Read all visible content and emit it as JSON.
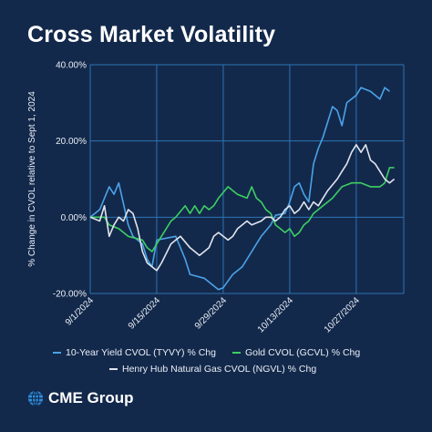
{
  "colors": {
    "background": "#13294b",
    "grid": "#2d73b5",
    "series": [
      "#4aa3e8",
      "#3dcf63",
      "#dfe5ee"
    ]
  },
  "chart_data": {
    "type": "line",
    "title": "Cross Market Volatility",
    "ylabel": "% Change in CVOL relative to Sept 1, 2024",
    "xlabel": "",
    "x_range": [
      "2024-09-01",
      "2024-11-06"
    ],
    "ylim": [
      -20,
      40
    ],
    "yticks": [
      {
        "value": 40,
        "label": "40.00%"
      },
      {
        "value": 20,
        "label": "20.00%"
      },
      {
        "value": 0,
        "label": "0.00%"
      },
      {
        "value": -20,
        "label": "-20.00%"
      }
    ],
    "xticks": [
      {
        "date": "2024-09-01",
        "label": "9/1/2024"
      },
      {
        "date": "2024-09-15",
        "label": "9/15/2024"
      },
      {
        "date": "2024-09-29",
        "label": "9/29/2024"
      },
      {
        "date": "2024-10-13",
        "label": "10/13/2024"
      },
      {
        "date": "2024-10-27",
        "label": "10/27/2024"
      }
    ],
    "grid": true,
    "legend_position": "bottom",
    "series": [
      {
        "name": "10-Year Yield CVOL (TYVY) % Chg",
        "points": [
          [
            "2024-09-01",
            0
          ],
          [
            "2024-09-03",
            2
          ],
          [
            "2024-09-05",
            8
          ],
          [
            "2024-09-06",
            6
          ],
          [
            "2024-09-07",
            9
          ],
          [
            "2024-09-09",
            -2
          ],
          [
            "2024-09-10",
            -5
          ],
          [
            "2024-09-12",
            -7
          ],
          [
            "2024-09-13",
            -11
          ],
          [
            "2024-09-14",
            -13
          ],
          [
            "2024-09-15",
            -6
          ],
          [
            "2024-09-19",
            -5
          ],
          [
            "2024-09-20",
            -8
          ],
          [
            "2024-09-21",
            -11
          ],
          [
            "2024-09-22",
            -15
          ],
          [
            "2024-09-25",
            -16
          ],
          [
            "2024-09-27",
            -18
          ],
          [
            "2024-09-28",
            -19
          ],
          [
            "2024-09-29",
            -18.5
          ],
          [
            "2024-10-01",
            -15
          ],
          [
            "2024-10-03",
            -13
          ],
          [
            "2024-10-05",
            -9
          ],
          [
            "2024-10-06",
            -7
          ],
          [
            "2024-10-07",
            -5
          ],
          [
            "2024-10-09",
            -2
          ],
          [
            "2024-10-10",
            0.5
          ],
          [
            "2024-10-12",
            1
          ],
          [
            "2024-10-13",
            4
          ],
          [
            "2024-10-14",
            8
          ],
          [
            "2024-10-15",
            9
          ],
          [
            "2024-10-16",
            6
          ],
          [
            "2024-10-17",
            4
          ],
          [
            "2024-10-18",
            14
          ],
          [
            "2024-10-19",
            18
          ],
          [
            "2024-10-20",
            21
          ],
          [
            "2024-10-21",
            25
          ],
          [
            "2024-10-22",
            29
          ],
          [
            "2024-10-23",
            28
          ],
          [
            "2024-10-24",
            24
          ],
          [
            "2024-10-25",
            30
          ],
          [
            "2024-10-27",
            32
          ],
          [
            "2024-10-28",
            34
          ],
          [
            "2024-10-30",
            33
          ],
          [
            "2024-10-31",
            32
          ],
          [
            "2024-11-01",
            31
          ],
          [
            "2024-11-02",
            34
          ],
          [
            "2024-11-03",
            33
          ]
        ]
      },
      {
        "name": "Gold CVOL (GCVL) % Chg",
        "points": [
          [
            "2024-09-01",
            0
          ],
          [
            "2024-09-04",
            0
          ],
          [
            "2024-09-05",
            -2
          ],
          [
            "2024-09-07",
            -3
          ],
          [
            "2024-09-09",
            -5
          ],
          [
            "2024-09-12",
            -6
          ],
          [
            "2024-09-13",
            -8
          ],
          [
            "2024-09-14",
            -9
          ],
          [
            "2024-09-15",
            -7
          ],
          [
            "2024-09-17",
            -3
          ],
          [
            "2024-09-18",
            -1
          ],
          [
            "2024-09-19",
            0
          ],
          [
            "2024-09-21",
            3
          ],
          [
            "2024-09-22",
            1
          ],
          [
            "2024-09-23",
            3
          ],
          [
            "2024-09-24",
            1
          ],
          [
            "2024-09-25",
            3
          ],
          [
            "2024-09-26",
            2
          ],
          [
            "2024-09-27",
            3
          ],
          [
            "2024-09-28",
            5
          ],
          [
            "2024-09-30",
            8
          ],
          [
            "2024-10-01",
            7
          ],
          [
            "2024-10-02",
            6
          ],
          [
            "2024-10-04",
            5
          ],
          [
            "2024-10-05",
            8
          ],
          [
            "2024-10-06",
            5
          ],
          [
            "2024-10-07",
            4
          ],
          [
            "2024-10-08",
            2
          ],
          [
            "2024-10-09",
            1
          ],
          [
            "2024-10-10",
            -2
          ],
          [
            "2024-10-11",
            -3
          ],
          [
            "2024-10-12",
            -4
          ],
          [
            "2024-10-13",
            -3
          ],
          [
            "2024-10-14",
            -5
          ],
          [
            "2024-10-15",
            -4
          ],
          [
            "2024-10-16",
            -2
          ],
          [
            "2024-10-17",
            -1
          ],
          [
            "2024-10-18",
            1
          ],
          [
            "2024-10-20",
            3
          ],
          [
            "2024-10-22",
            5
          ],
          [
            "2024-10-24",
            8
          ],
          [
            "2024-10-26",
            9
          ],
          [
            "2024-10-28",
            9
          ],
          [
            "2024-10-30",
            8
          ],
          [
            "2024-11-01",
            8
          ],
          [
            "2024-11-02",
            9
          ],
          [
            "2024-11-03",
            13
          ],
          [
            "2024-11-04",
            13
          ]
        ]
      },
      {
        "name": "Henry Hub Natural Gas CVOL (NGVL) % Chg",
        "points": [
          [
            "2024-09-01",
            0
          ],
          [
            "2024-09-03",
            -1
          ],
          [
            "2024-09-04",
            3
          ],
          [
            "2024-09-05",
            -5
          ],
          [
            "2024-09-06",
            -2
          ],
          [
            "2024-09-07",
            0
          ],
          [
            "2024-09-08",
            -1
          ],
          [
            "2024-09-09",
            2
          ],
          [
            "2024-09-10",
            1
          ],
          [
            "2024-09-11",
            -3
          ],
          [
            "2024-09-12",
            -9
          ],
          [
            "2024-09-13",
            -12
          ],
          [
            "2024-09-15",
            -14
          ],
          [
            "2024-09-16",
            -12
          ],
          [
            "2024-09-18",
            -7
          ],
          [
            "2024-09-19",
            -6
          ],
          [
            "2024-09-20",
            -5
          ],
          [
            "2024-09-22",
            -8
          ],
          [
            "2024-09-24",
            -10
          ],
          [
            "2024-09-26",
            -8
          ],
          [
            "2024-09-27",
            -5
          ],
          [
            "2024-09-28",
            -4
          ],
          [
            "2024-09-30",
            -6
          ],
          [
            "2024-10-01",
            -5
          ],
          [
            "2024-10-02",
            -3
          ],
          [
            "2024-10-03",
            -2
          ],
          [
            "2024-10-04",
            -1
          ],
          [
            "2024-10-05",
            -2
          ],
          [
            "2024-10-07",
            -1
          ],
          [
            "2024-10-08",
            0
          ],
          [
            "2024-10-09",
            0
          ],
          [
            "2024-10-10",
            -1
          ],
          [
            "2024-10-11",
            0
          ],
          [
            "2024-10-12",
            2
          ],
          [
            "2024-10-13",
            3
          ],
          [
            "2024-10-14",
            1
          ],
          [
            "2024-10-15",
            2
          ],
          [
            "2024-10-16",
            4
          ],
          [
            "2024-10-17",
            2
          ],
          [
            "2024-10-18",
            4
          ],
          [
            "2024-10-19",
            3
          ],
          [
            "2024-10-20",
            5
          ],
          [
            "2024-10-21",
            7
          ],
          [
            "2024-10-23",
            10
          ],
          [
            "2024-10-24",
            12
          ],
          [
            "2024-10-25",
            14
          ],
          [
            "2024-10-26",
            17
          ],
          [
            "2024-10-27",
            19
          ],
          [
            "2024-10-28",
            17
          ],
          [
            "2024-10-29",
            19
          ],
          [
            "2024-10-30",
            15
          ],
          [
            "2024-10-31",
            14
          ],
          [
            "2024-11-01",
            12
          ],
          [
            "2024-11-02",
            10
          ],
          [
            "2024-11-03",
            9
          ],
          [
            "2024-11-04",
            10
          ]
        ]
      }
    ]
  },
  "footer": {
    "brand": "CME Group"
  }
}
